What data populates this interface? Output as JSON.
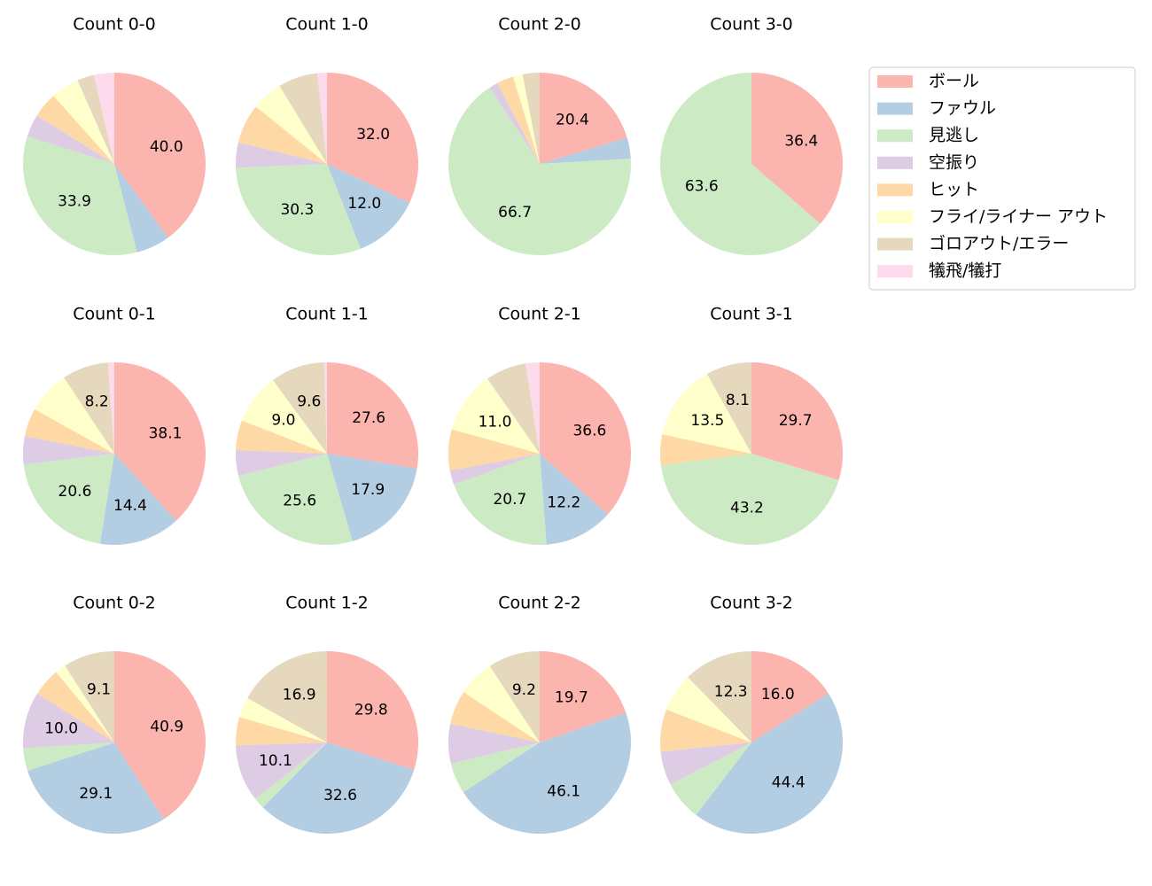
{
  "chart_data": [
    {
      "type": "pie",
      "title": "Count 0-0",
      "values": [
        40.0,
        6.0,
        33.9,
        4.0,
        4.5,
        5.0,
        3.0,
        3.6
      ],
      "value_labels": [
        "40.0",
        null,
        "33.9",
        null,
        null,
        null,
        null,
        null
      ]
    },
    {
      "type": "pie",
      "title": "Count 1-0",
      "values": [
        32.0,
        12.0,
        30.3,
        4.5,
        7.0,
        5.5,
        7.0,
        1.7
      ],
      "value_labels": [
        "32.0",
        "12.0",
        "30.3",
        null,
        null,
        null,
        null,
        null
      ]
    },
    {
      "type": "pie",
      "title": "Count 2-0",
      "values": [
        20.4,
        3.7,
        66.7,
        1.5,
        3.0,
        1.7,
        3.0,
        0
      ],
      "value_labels": [
        "20.4",
        null,
        "66.7",
        null,
        null,
        null,
        null,
        null
      ]
    },
    {
      "type": "pie",
      "title": "Count 3-0",
      "values": [
        36.4,
        0,
        63.6,
        0,
        0,
        0,
        0,
        0
      ],
      "value_labels": [
        "36.4",
        null,
        "63.6",
        null,
        null,
        null,
        null,
        null
      ]
    },
    {
      "type": "pie",
      "title": "Count 0-1",
      "values": [
        38.1,
        14.4,
        20.6,
        5.0,
        5.0,
        7.6,
        8.2,
        1.1
      ],
      "value_labels": [
        "38.1",
        "14.4",
        "20.6",
        null,
        null,
        null,
        "8.2",
        null
      ]
    },
    {
      "type": "pie",
      "title": "Count 1-1",
      "values": [
        27.6,
        17.9,
        25.6,
        4.5,
        5.3,
        9.0,
        9.6,
        0.5
      ],
      "value_labels": [
        "27.6",
        "17.9",
        "25.6",
        null,
        null,
        "9.0",
        "9.6",
        null
      ]
    },
    {
      "type": "pie",
      "title": "Count 2-1",
      "values": [
        36.6,
        12.2,
        20.7,
        2.5,
        7.3,
        11.0,
        7.2,
        2.5
      ],
      "value_labels": [
        "36.6",
        "12.2",
        "20.7",
        null,
        null,
        "11.0",
        null,
        null
      ]
    },
    {
      "type": "pie",
      "title": "Count 3-1",
      "values": [
        29.7,
        0,
        43.2,
        0,
        5.5,
        13.5,
        8.1,
        0
      ],
      "value_labels": [
        "29.7",
        null,
        "43.2",
        null,
        null,
        "13.5",
        "8.1",
        null
      ]
    },
    {
      "type": "pie",
      "title": "Count 0-2",
      "values": [
        40.9,
        29.1,
        4.0,
        10.0,
        5.0,
        1.9,
        9.1,
        0
      ],
      "value_labels": [
        "40.9",
        "29.1",
        null,
        "10.0",
        null,
        null,
        "9.1",
        null
      ]
    },
    {
      "type": "pie",
      "title": "Count 1-2",
      "values": [
        29.8,
        32.6,
        2.0,
        10.1,
        5.0,
        3.6,
        16.9,
        0
      ],
      "value_labels": [
        "29.8",
        "32.6",
        null,
        "10.1",
        null,
        null,
        "16.9",
        null
      ]
    },
    {
      "type": "pie",
      "title": "Count 2-2",
      "values": [
        19.7,
        46.1,
        5.5,
        7.0,
        6.0,
        6.5,
        9.2,
        0
      ],
      "value_labels": [
        "19.7",
        "46.1",
        null,
        null,
        null,
        null,
        "9.2",
        null
      ]
    },
    {
      "type": "pie",
      "title": "Count 3-2",
      "values": [
        16.0,
        44.4,
        7.0,
        6.0,
        7.5,
        6.8,
        12.3,
        0
      ],
      "value_labels": [
        "16.0",
        "44.4",
        null,
        null,
        null,
        null,
        "12.3",
        null
      ]
    }
  ],
  "legend": {
    "position": "upper right",
    "labels": [
      "ボール",
      "ファウル",
      "見逃し",
      "空振り",
      "ヒット",
      "フライ/ライナー アウト",
      "ゴロアウト/エラー",
      "犠飛/犠打"
    ],
    "colors": [
      "#fbb4ae",
      "#b3cde3",
      "#ccebc5",
      "#decbe4",
      "#fed9a6",
      "#ffffcc",
      "#e5d8bd",
      "#fddaec"
    ]
  }
}
